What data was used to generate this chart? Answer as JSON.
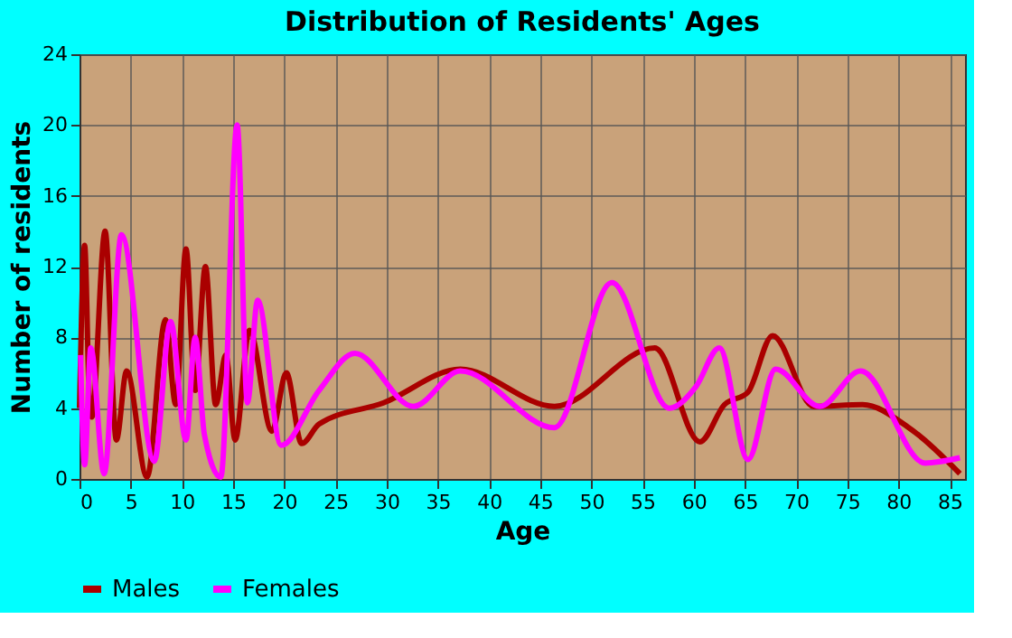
{
  "chart_data": {
    "type": "line",
    "title": "Distribution of Residents' Ages",
    "xlabel": "Age",
    "ylabel": "Number of residents",
    "xlim": [
      0,
      86.5
    ],
    "xticks": [
      0,
      5,
      10,
      15,
      20,
      25,
      30,
      35,
      40,
      45,
      50,
      55,
      60,
      65,
      70,
      75,
      80,
      85
    ],
    "ylim": [
      0,
      24
    ],
    "yticks": [
      0,
      4,
      8,
      12,
      16,
      20,
      24
    ],
    "grid": true,
    "legend": "bottom",
    "line_style": "solid",
    "marker": "none",
    "series": [
      {
        "name": "Males",
        "color": "#aa0000",
        "x": [
          0,
          0.5,
          1,
          1.2,
          2.5,
          3.6,
          4.6,
          6.6,
          8.4,
          9.4,
          10.4,
          11.3,
          12.3,
          13.3,
          14.3,
          15.2,
          16.6,
          18.8,
          20.2,
          21.7,
          23.4,
          29.7,
          37.2,
          46.4,
          56.2,
          60.6,
          63,
          65.3,
          67.7,
          71.7,
          76.5,
          81,
          86
        ],
        "values": [
          4,
          13.2,
          4,
          3.5,
          14,
          2.2,
          6.1,
          0.1,
          9,
          4.2,
          13,
          5,
          12,
          4.2,
          7,
          2.2,
          8.4,
          2.7,
          6,
          2,
          3.1,
          4.3,
          6.2,
          4.1,
          7.4,
          2.1,
          4.2,
          4.9,
          8.1,
          4.1,
          4.2,
          2.9,
          0.3
        ]
      },
      {
        "name": "Females",
        "color": "#ff00ff",
        "x": [
          0.1,
          0.5,
          1.1,
          2.4,
          4.1,
          7.3,
          8.9,
          10.4,
          11.3,
          12.2,
          13.8,
          15.4,
          16.4,
          17.4,
          19.7,
          23.4,
          26.9,
          32.6,
          37.2,
          46.4,
          52,
          57.6,
          60.2,
          62.5,
          65.3,
          68,
          72.3,
          76.3,
          82.6,
          86
        ],
        "values": [
          7,
          0.8,
          7.4,
          0.3,
          13.8,
          1,
          8.9,
          2.2,
          8,
          2.5,
          0.1,
          20,
          4.3,
          10.1,
          1.9,
          5,
          7.1,
          4.1,
          6.1,
          2.9,
          11.1,
          4,
          5.2,
          7.4,
          1.1,
          6.2,
          4.1,
          6.1,
          0.9,
          1.2
        ]
      }
    ]
  }
}
